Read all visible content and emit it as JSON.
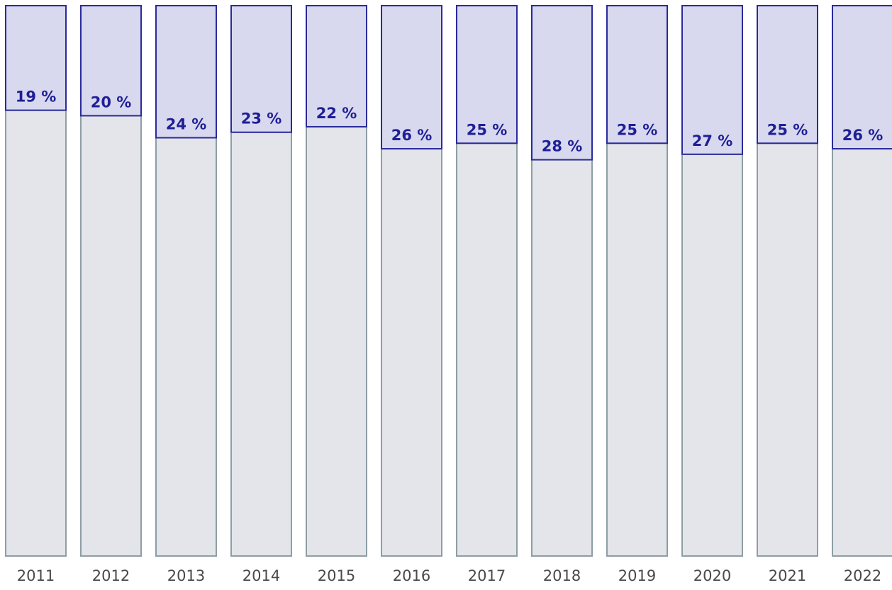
{
  "chart_data": {
    "type": "stacked_bar",
    "categories": [
      "2011",
      "2012",
      "2013",
      "2014",
      "2015",
      "2016",
      "2017",
      "2018",
      "2019",
      "2020",
      "2021",
      "2022"
    ],
    "series": [
      {
        "color": "#e4e5ea",
        "values": [
          81,
          80,
          76,
          77,
          78,
          74,
          75,
          72,
          75,
          73,
          75,
          74
        ]
      },
      {
        "color": "#d8d8ef",
        "values": [
          19,
          20,
          24,
          23,
          22,
          26,
          25,
          28,
          25,
          27,
          25,
          26
        ],
        "value_labels": [
          "19 %",
          "20 %",
          "24 %",
          "23 %",
          "22 %",
          "26 %",
          "25 %",
          "28 %",
          "25 %",
          "27 %",
          "25 %",
          "26 %"
        ]
      }
    ],
    "ylim": [
      0,
      100
    ]
  }
}
